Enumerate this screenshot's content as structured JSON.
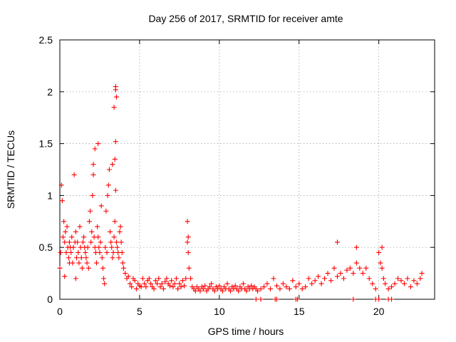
{
  "chart_data": {
    "type": "scatter",
    "title": "Day 256 of 2017, SRMTID for receiver amte",
    "xlabel": "GPS time / hours",
    "ylabel": "SRMTID / TECUs",
    "xlim": [
      0,
      23.5
    ],
    "ylim": [
      0,
      2.5
    ],
    "x_ticks": [
      "0",
      "5",
      "10",
      "15",
      "20"
    ],
    "y_ticks": [
      "0",
      "0.5",
      "1",
      "1.5",
      "2",
      "2.5"
    ],
    "grid": true,
    "series": [
      {
        "name": "SRMTID",
        "color": "#ff0000",
        "marker": "+",
        "x": [
          0.0,
          0.05,
          0.1,
          0.15,
          0.2,
          0.25,
          0.3,
          0.35,
          0.4,
          0.45,
          0.5,
          0.55,
          0.6,
          0.65,
          0.7,
          0.75,
          0.8,
          0.85,
          0.9,
          0.95,
          1.0,
          1.05,
          1.1,
          1.15,
          1.2,
          1.25,
          1.3,
          1.35,
          1.4,
          1.45,
          1.5,
          1.55,
          1.6,
          1.65,
          1.7,
          1.75,
          1.8,
          1.85,
          1.9,
          1.95,
          2.0,
          2.05,
          2.1,
          2.15,
          2.2,
          2.25,
          2.3,
          2.35,
          2.4,
          2.45,
          2.5,
          2.55,
          2.6,
          2.65,
          2.7,
          2.75,
          2.8,
          2.85,
          2.9,
          2.95,
          3.0,
          3.05,
          3.1,
          3.15,
          3.2,
          3.25,
          3.3,
          3.35,
          3.4,
          3.45,
          3.5,
          3.55,
          3.6,
          3.65,
          3.7,
          3.75,
          3.8,
          3.85,
          3.9,
          3.95,
          4.0,
          4.1,
          4.2,
          4.3,
          4.4,
          4.5,
          4.6,
          4.7,
          4.8,
          4.9,
          5.0,
          5.1,
          5.2,
          5.3,
          5.4,
          5.5,
          5.6,
          5.7,
          5.8,
          5.9,
          6.0,
          6.1,
          6.2,
          6.3,
          6.4,
          6.5,
          6.6,
          6.7,
          6.8,
          6.9,
          7.0,
          7.1,
          7.2,
          7.3,
          7.4,
          7.5,
          7.6,
          7.7,
          7.8,
          7.9,
          8.0,
          8.05,
          8.1,
          8.2,
          8.3,
          8.4,
          8.5,
          8.6,
          8.7,
          8.8,
          8.9,
          9.0,
          9.1,
          9.2,
          9.3,
          9.4,
          9.5,
          9.6,
          9.7,
          9.8,
          9.9,
          10.0,
          10.1,
          10.2,
          10.3,
          10.4,
          10.5,
          10.6,
          10.7,
          10.8,
          10.9,
          11.0,
          11.1,
          11.2,
          11.3,
          11.4,
          11.5,
          11.6,
          11.7,
          11.8,
          11.9,
          12.0,
          12.1,
          12.2,
          12.3,
          12.4,
          12.6,
          12.8,
          13.0,
          13.2,
          13.4,
          13.6,
          13.8,
          14.0,
          14.2,
          14.4,
          14.6,
          14.8,
          15.0,
          15.2,
          15.4,
          15.6,
          15.8,
          16.0,
          16.2,
          16.4,
          16.6,
          16.8,
          17.0,
          17.2,
          17.4,
          17.6,
          17.8,
          18.0,
          18.2,
          18.4,
          18.6,
          18.8,
          19.0,
          19.2,
          19.4,
          19.6,
          19.8,
          20.0,
          20.1,
          20.2,
          20.3,
          20.4,
          20.6,
          20.8,
          21.0,
          21.2,
          21.4,
          21.6,
          21.8,
          22.0,
          22.2,
          22.4,
          22.6,
          22.7,
          0.3,
          0.6,
          1.0,
          2.1,
          2.2,
          2.4,
          3.45,
          3.5,
          3.5,
          3.55,
          3.4,
          3.5,
          3.3,
          12.3,
          12.6,
          13.5,
          13.6,
          14.8,
          14.9,
          18.4,
          19.8,
          20.0,
          20.6,
          20.8,
          17.4,
          18.6,
          20.2,
          8.0,
          8.05
        ],
        "y": [
          0.3,
          0.45,
          1.1,
          0.95,
          0.6,
          0.75,
          0.55,
          0.65,
          0.45,
          0.7,
          0.5,
          0.4,
          0.55,
          0.5,
          0.45,
          0.6,
          0.35,
          0.5,
          1.2,
          0.55,
          0.65,
          0.4,
          0.55,
          0.45,
          0.35,
          0.7,
          0.5,
          0.4,
          0.3,
          0.55,
          0.6,
          0.5,
          0.45,
          0.4,
          0.35,
          0.5,
          0.3,
          0.75,
          0.85,
          0.55,
          0.65,
          1.0,
          1.3,
          0.6,
          0.5,
          0.45,
          0.35,
          0.7,
          0.6,
          0.5,
          0.45,
          0.55,
          0.9,
          0.4,
          0.3,
          0.2,
          0.15,
          0.5,
          0.85,
          0.45,
          1.0,
          1.1,
          1.25,
          0.65,
          0.55,
          0.5,
          0.4,
          0.45,
          0.6,
          0.75,
          1.05,
          0.55,
          0.5,
          0.45,
          0.4,
          0.65,
          0.7,
          0.55,
          0.45,
          0.35,
          0.3,
          0.25,
          0.2,
          0.22,
          0.15,
          0.12,
          0.2,
          0.18,
          0.1,
          0.15,
          0.13,
          0.12,
          0.2,
          0.15,
          0.12,
          0.18,
          0.2,
          0.15,
          0.12,
          0.1,
          0.18,
          0.15,
          0.2,
          0.12,
          0.15,
          0.1,
          0.17,
          0.2,
          0.15,
          0.13,
          0.18,
          0.12,
          0.15,
          0.2,
          0.1,
          0.15,
          0.12,
          0.18,
          0.13,
          0.2,
          0.55,
          0.45,
          0.3,
          0.2,
          0.12,
          0.1,
          0.08,
          0.12,
          0.1,
          0.08,
          0.12,
          0.1,
          0.13,
          0.08,
          0.1,
          0.12,
          0.15,
          0.1,
          0.08,
          0.12,
          0.1,
          0.13,
          0.1,
          0.08,
          0.12,
          0.1,
          0.15,
          0.1,
          0.08,
          0.12,
          0.1,
          0.13,
          0.1,
          0.08,
          0.12,
          0.1,
          0.15,
          0.1,
          0.08,
          0.12,
          0.1,
          0.13,
          0.1,
          0.12,
          0.1,
          0.08,
          0.1,
          0.12,
          0.15,
          0.1,
          0.2,
          0.13,
          0.1,
          0.15,
          0.12,
          0.1,
          0.18,
          0.12,
          0.15,
          0.1,
          0.12,
          0.2,
          0.15,
          0.18,
          0.22,
          0.15,
          0.2,
          0.25,
          0.18,
          0.3,
          0.22,
          0.25,
          0.2,
          0.28,
          0.3,
          0.25,
          0.35,
          0.3,
          0.25,
          0.3,
          0.2,
          0.15,
          0.1,
          0.45,
          0.35,
          0.3,
          0.2,
          0.15,
          0.1,
          0.12,
          0.15,
          0.2,
          0.18,
          0.15,
          0.2,
          0.12,
          0.18,
          0.15,
          0.2,
          0.25,
          0.22,
          0.35,
          0.2,
          1.2,
          1.45,
          1.5,
          1.35,
          2.05,
          2.02,
          1.95,
          1.85,
          1.52,
          1.3,
          0.0,
          0.0,
          0.0,
          0.0,
          0.0,
          0.0,
          0.0,
          0.0,
          0.0,
          0.0,
          0.0,
          0.55,
          0.5,
          0.5,
          0.75,
          0.6
        ]
      }
    ]
  }
}
